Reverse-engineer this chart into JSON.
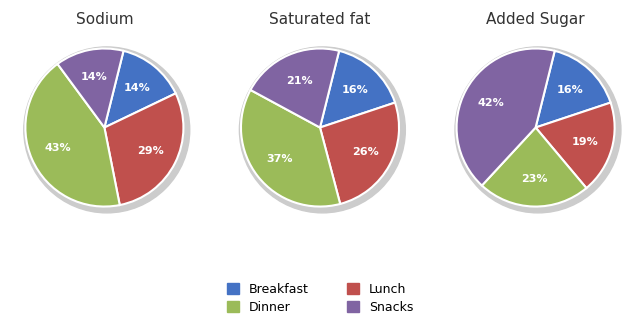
{
  "charts": [
    {
      "title": "Sodium",
      "values": [
        14,
        29,
        43,
        14
      ],
      "pct_labels": [
        "14%",
        "29%",
        "43%",
        "14%"
      ],
      "startangle": 76
    },
    {
      "title": "Saturated fat",
      "values": [
        16,
        26,
        37,
        21
      ],
      "pct_labels": [
        "16%",
        "26%",
        "37%",
        "21%"
      ],
      "startangle": 76
    },
    {
      "title": "Added Sugar",
      "values": [
        16,
        19,
        23,
        42
      ],
      "pct_labels": [
        "16%",
        "19%",
        "23%",
        "42%"
      ],
      "startangle": 76
    }
  ],
  "colors": [
    "#4472C4",
    "#C0504D",
    "#9BBB59",
    "#8064A2"
  ],
  "text_color": "#FFFFFF",
  "title_fontsize": 11,
  "label_fontsize": 8,
  "background_color": "#FFFFFF",
  "shadow_color": "#CCCCCC"
}
